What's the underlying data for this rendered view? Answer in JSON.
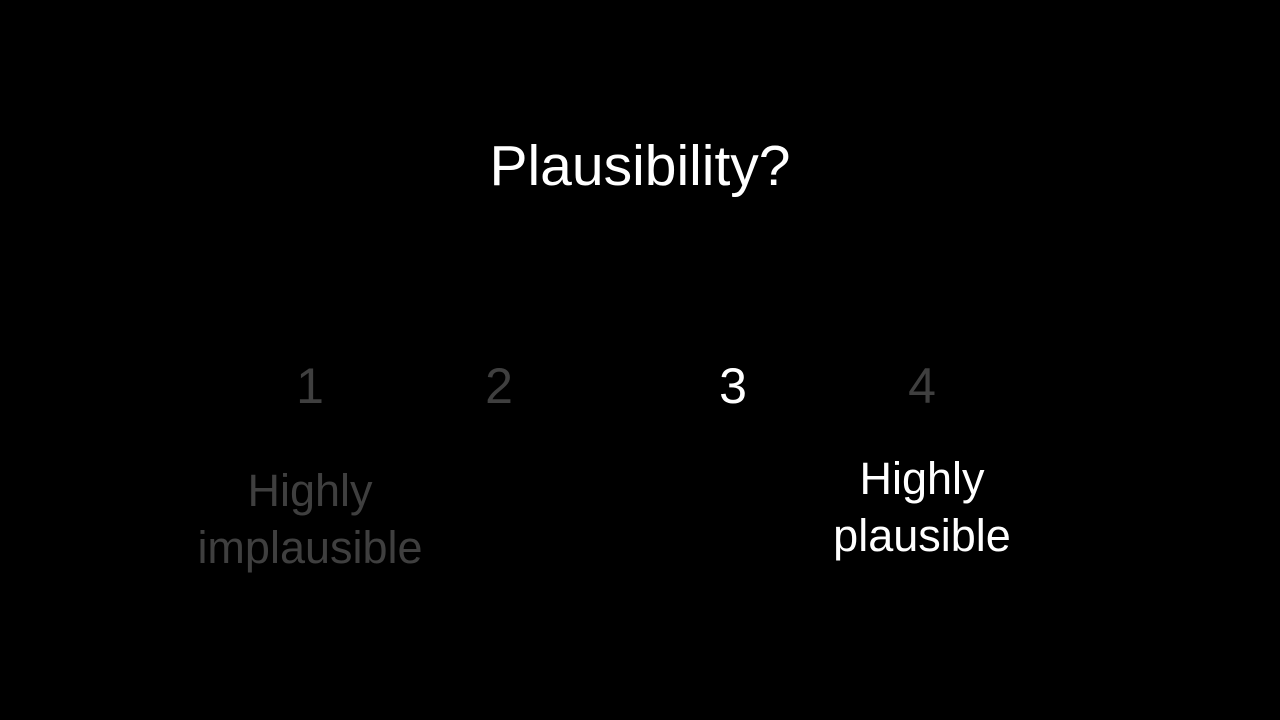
{
  "question": "Plausibility?",
  "scale": {
    "options": [
      {
        "label": "1",
        "selected": false
      },
      {
        "label": "2",
        "selected": false
      },
      {
        "label": "3",
        "selected": true
      },
      {
        "label": "4",
        "selected": false
      }
    ],
    "low_anchor": {
      "line1": "Highly",
      "line2": "implausible"
    },
    "high_anchor": {
      "line1": "Highly",
      "line2": "plausible"
    }
  },
  "colors": {
    "background": "#000000",
    "active_text": "#ffffff",
    "dim_text": "#3f3f3f"
  }
}
